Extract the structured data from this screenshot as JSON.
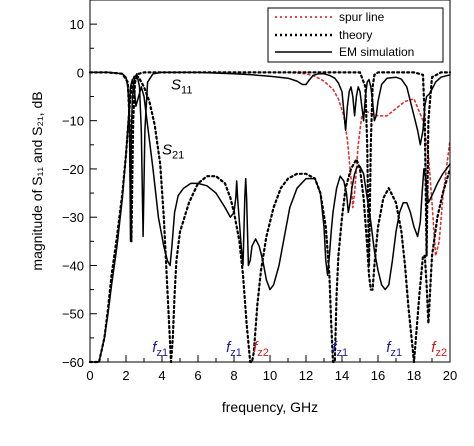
{
  "chart_data": {
    "type": "line",
    "xlabel": "frequency, GHz",
    "ylabel": "magnitude of S₁₁ and S₂₁, dB",
    "xlim": [
      0,
      20
    ],
    "ylim": [
      -60,
      15
    ],
    "x_ticks": [
      "0",
      "2",
      "4",
      "6",
      "8",
      "10",
      "12",
      "14",
      "16",
      "18",
      "20"
    ],
    "y_ticks": [
      "10",
      "0",
      "−10",
      "−20",
      "−30",
      "−40",
      "−50",
      "−60"
    ],
    "grid": false,
    "legend_position": "top-right",
    "legend": [
      "spur line",
      "theory",
      "EM simulation"
    ],
    "curve_labels": [
      {
        "text": "S",
        "sub": "11",
        "x": 4.5,
        "y": -3.5
      },
      {
        "text": "S",
        "sub": "21",
        "x": 4.0,
        "y": -17.0
      }
    ],
    "zero_markers": [
      {
        "text": "f",
        "sub": "z1",
        "x": 3.9,
        "color": "#1a1aa8"
      },
      {
        "text": "f",
        "sub": "z1",
        "x": 8.0,
        "color": "#1a1aa8"
      },
      {
        "text": "f",
        "sub": "z2",
        "x": 9.5,
        "color": "#cc1a1a"
      },
      {
        "text": "f",
        "sub": "z1",
        "x": 13.9,
        "color": "#1a1aa8"
      },
      {
        "text": "f",
        "sub": "z1",
        "x": 16.9,
        "color": "#1a1aa8"
      },
      {
        "text": "f",
        "sub": "z2",
        "x": 19.4,
        "color": "#cc1a1a"
      }
    ],
    "series": [
      {
        "name": "spur line",
        "style": "dotted",
        "color": "#e03030",
        "x": [
          11,
          12,
          12.5,
          13,
          13.5,
          13.8,
          14.1,
          14.3,
          14.5,
          14.6,
          14.7,
          14.9,
          15.1,
          15.3,
          15.6,
          16.0,
          16.5,
          17.0,
          17.5,
          18.0,
          18.5,
          18.8,
          19.0,
          19.2,
          19.4,
          19.6,
          19.8,
          20
        ],
        "y": [
          0,
          -0.3,
          -0.8,
          -1.8,
          -3.5,
          -5.5,
          -9,
          -14,
          -22,
          -28,
          -25,
          -15,
          -9,
          -8,
          -8.5,
          -9,
          -9,
          -7.5,
          -6,
          -5.5,
          -10,
          -17,
          -27,
          -38,
          -35,
          -26,
          -20,
          -14
        ]
      },
      {
        "name": "theory",
        "style": "dotted",
        "color": "#000000",
        "x": [
          0,
          0.5,
          0.8,
          1.0,
          1.2,
          1.5,
          1.8,
          2.0,
          2.1,
          2.2,
          2.3,
          2.4,
          2.5,
          2.7,
          3.0,
          3.3,
          3.6,
          3.9,
          4.1,
          4.3,
          4.5,
          4.6,
          4.7,
          4.8,
          5.0,
          5.5,
          6.0,
          6.5,
          7.0,
          7.5,
          7.8,
          8.0,
          8.3,
          8.5,
          8.7,
          8.9,
          9.0,
          9.1,
          9.3,
          9.5,
          9.8,
          10.2,
          10.6,
          11.0,
          11.5,
          12.0,
          12.5,
          12.8,
          13.1,
          13.3,
          13.4,
          13.5,
          13.6,
          13.7,
          13.8,
          14.0,
          14.2,
          14.5,
          14.8,
          15.0,
          15.2,
          15.4,
          15.5,
          15.6,
          15.7,
          15.8,
          16.0,
          16.3,
          16.6,
          17.0,
          17.3,
          17.5,
          17.7,
          18.0,
          18.3,
          18.5,
          18.6,
          18.7,
          18.8,
          19.0,
          19.3,
          19.6,
          20
        ],
        "y": [
          -60,
          -60,
          -55,
          -49,
          -42,
          -34,
          -25,
          -17,
          -12,
          -7,
          -3,
          -1.5,
          -0.6,
          -1,
          -3,
          -6,
          -11,
          -19,
          -30,
          -45,
          -60,
          -55,
          -46,
          -39,
          -33,
          -27,
          -23,
          -21.5,
          -21.5,
          -23,
          -26,
          -29,
          -35,
          -42,
          -52,
          -60,
          -60,
          -58,
          -48,
          -41,
          -34,
          -28,
          -24,
          -22,
          -21,
          -21,
          -22,
          -25,
          -32,
          -42,
          -52,
          -60,
          -60,
          -46,
          -38,
          -30,
          -24,
          -20,
          -18,
          -20,
          -26,
          -36,
          -42,
          -45,
          -45,
          -40,
          -32,
          -26,
          -24,
          -27,
          -33,
          -40,
          -49,
          -60,
          -46,
          -38,
          -38,
          -44,
          -52,
          -38,
          -30,
          -25,
          -20
        ]
      },
      {
        "name": "theory S11",
        "style": "dotted",
        "color": "#000000",
        "x": [
          0,
          1.0,
          1.8,
          2.1,
          2.2,
          2.3,
          2.4,
          2.5,
          2.7,
          3.0,
          4.0,
          6.0,
          8.0,
          10.0,
          12.0,
          14.0,
          15.0,
          15.3,
          15.4,
          15.5,
          15.6,
          15.7,
          15.8,
          16.0,
          17.0,
          18.0,
          18.5,
          18.6,
          18.7,
          18.8,
          19.0,
          19.5,
          20
        ],
        "y": [
          0,
          0,
          -0.3,
          -2,
          -10,
          -35,
          -10,
          -2,
          -0.3,
          0,
          0,
          0,
          0,
          0,
          0,
          0,
          0,
          -3,
          -15,
          -40,
          -15,
          -3,
          -0.5,
          0,
          0,
          0,
          -0.5,
          -10,
          -38,
          -10,
          -1,
          0,
          0
        ]
      },
      {
        "name": "EM simulation S21",
        "style": "solid",
        "color": "#000000",
        "x": [
          0,
          0.5,
          0.8,
          1.0,
          1.2,
          1.5,
          1.8,
          2.0,
          2.15,
          2.25,
          2.35,
          2.45,
          2.55,
          2.7,
          2.85,
          3.0,
          3.2,
          3.5,
          3.8,
          4.1,
          4.3,
          4.45,
          4.55,
          4.7,
          4.9,
          5.2,
          5.6,
          6.0,
          6.5,
          7.0,
          7.5,
          7.8,
          8.0,
          8.1,
          8.15,
          8.2,
          8.3,
          8.4,
          8.5,
          8.55,
          8.6,
          8.65,
          8.7,
          8.75,
          8.8,
          8.9,
          9.0,
          9.2,
          9.4,
          9.6,
          9.8,
          10.0,
          10.2,
          10.5,
          10.8,
          11.1,
          11.5,
          12.0,
          12.5,
          12.8,
          13.0,
          13.1,
          13.2,
          13.3,
          13.4,
          13.5,
          13.7,
          13.9,
          14.1,
          14.25,
          14.35,
          14.45,
          14.55,
          14.7,
          14.85,
          15.0,
          15.2,
          15.4,
          15.6,
          15.8,
          16.0,
          16.2,
          16.4,
          16.6,
          16.8,
          17.0,
          17.2,
          17.4,
          17.6,
          17.8,
          18.0,
          18.2,
          18.35,
          18.45,
          18.55,
          18.65,
          18.8,
          19.0,
          19.3,
          19.6,
          20
        ],
        "y": [
          -60,
          -60,
          -55,
          -50,
          -44,
          -36,
          -26,
          -17,
          -9,
          -3,
          -1.5,
          -3,
          -7,
          -5,
          -3,
          -5,
          -11,
          -20,
          -30,
          -36,
          -39,
          -40,
          -36,
          -29,
          -25.5,
          -24,
          -23,
          -23,
          -23.5,
          -25,
          -28,
          -30,
          -29,
          -26,
          -22.5,
          -26,
          -31,
          -36,
          -40,
          -33,
          -26,
          -22,
          -26,
          -33,
          -40,
          -39,
          -36,
          -34.5,
          -36,
          -39,
          -43,
          -45,
          -44,
          -40,
          -34,
          -28,
          -24,
          -22,
          -22,
          -25,
          -32,
          -39,
          -42,
          -38,
          -33,
          -29,
          -24,
          -21.5,
          -22.5,
          -25,
          -29,
          -27,
          -24,
          -21,
          -19.5,
          -19.5,
          -21,
          -26,
          -31,
          -37,
          -41,
          -44,
          -45,
          -44,
          -39,
          -33,
          -29,
          -27,
          -27,
          -29,
          -32,
          -34,
          -31,
          -25,
          -20,
          -22,
          -27,
          -25.5,
          -23,
          -21,
          -19
        ]
      },
      {
        "name": "EM simulation S11",
        "style": "solid",
        "color": "#000000",
        "x": [
          0,
          1.0,
          1.8,
          2.0,
          2.1,
          2.15,
          2.2,
          2.25,
          2.3,
          2.35,
          2.4,
          2.5,
          2.6,
          2.75,
          2.85,
          2.95,
          3.05,
          3.2,
          3.5,
          4.0,
          6.0,
          8.0,
          9.0,
          10.0,
          11.0,
          11.5,
          11.8,
          12.0,
          12.2,
          12.4,
          12.7,
          13.0,
          13.3,
          13.6,
          13.8,
          14.0,
          14.1,
          14.2,
          14.3,
          14.4,
          14.5,
          14.6,
          14.7,
          14.8,
          14.9,
          15.0,
          15.1,
          15.2,
          15.3,
          15.4,
          15.5,
          15.6,
          15.7,
          15.8,
          15.9,
          16.0,
          16.2,
          16.5,
          17.0,
          17.3,
          17.6,
          17.8,
          18.0,
          18.2,
          18.35,
          18.5,
          18.6,
          18.7,
          18.85,
          19.0,
          19.2,
          19.5,
          20
        ],
        "y": [
          0,
          0,
          -0.3,
          -1,
          -3,
          -6,
          -12,
          -35,
          -12,
          -6,
          -3,
          -1,
          -0.3,
          -3,
          -12,
          -34,
          -12,
          -2,
          -0.3,
          0,
          0,
          -0.3,
          -0.5,
          -0.8,
          -1.2,
          -1.8,
          -2.5,
          -2.5,
          -1.5,
          -0.6,
          -0.3,
          -0.3,
          -0.6,
          -1.2,
          -2.2,
          -4,
          -8,
          -12,
          -7,
          -4,
          -3,
          -5,
          -9,
          -5,
          -3,
          -4,
          -7,
          -10,
          -5,
          -2,
          -1.5,
          -3,
          -6,
          -10,
          -9,
          -6,
          -2.5,
          -1.2,
          -1,
          -1.4,
          -3,
          -6,
          -9,
          -12,
          -15,
          -12,
          -7,
          -5,
          -4.5,
          -3.5,
          -2,
          -1,
          -0.5
        ]
      }
    ]
  }
}
